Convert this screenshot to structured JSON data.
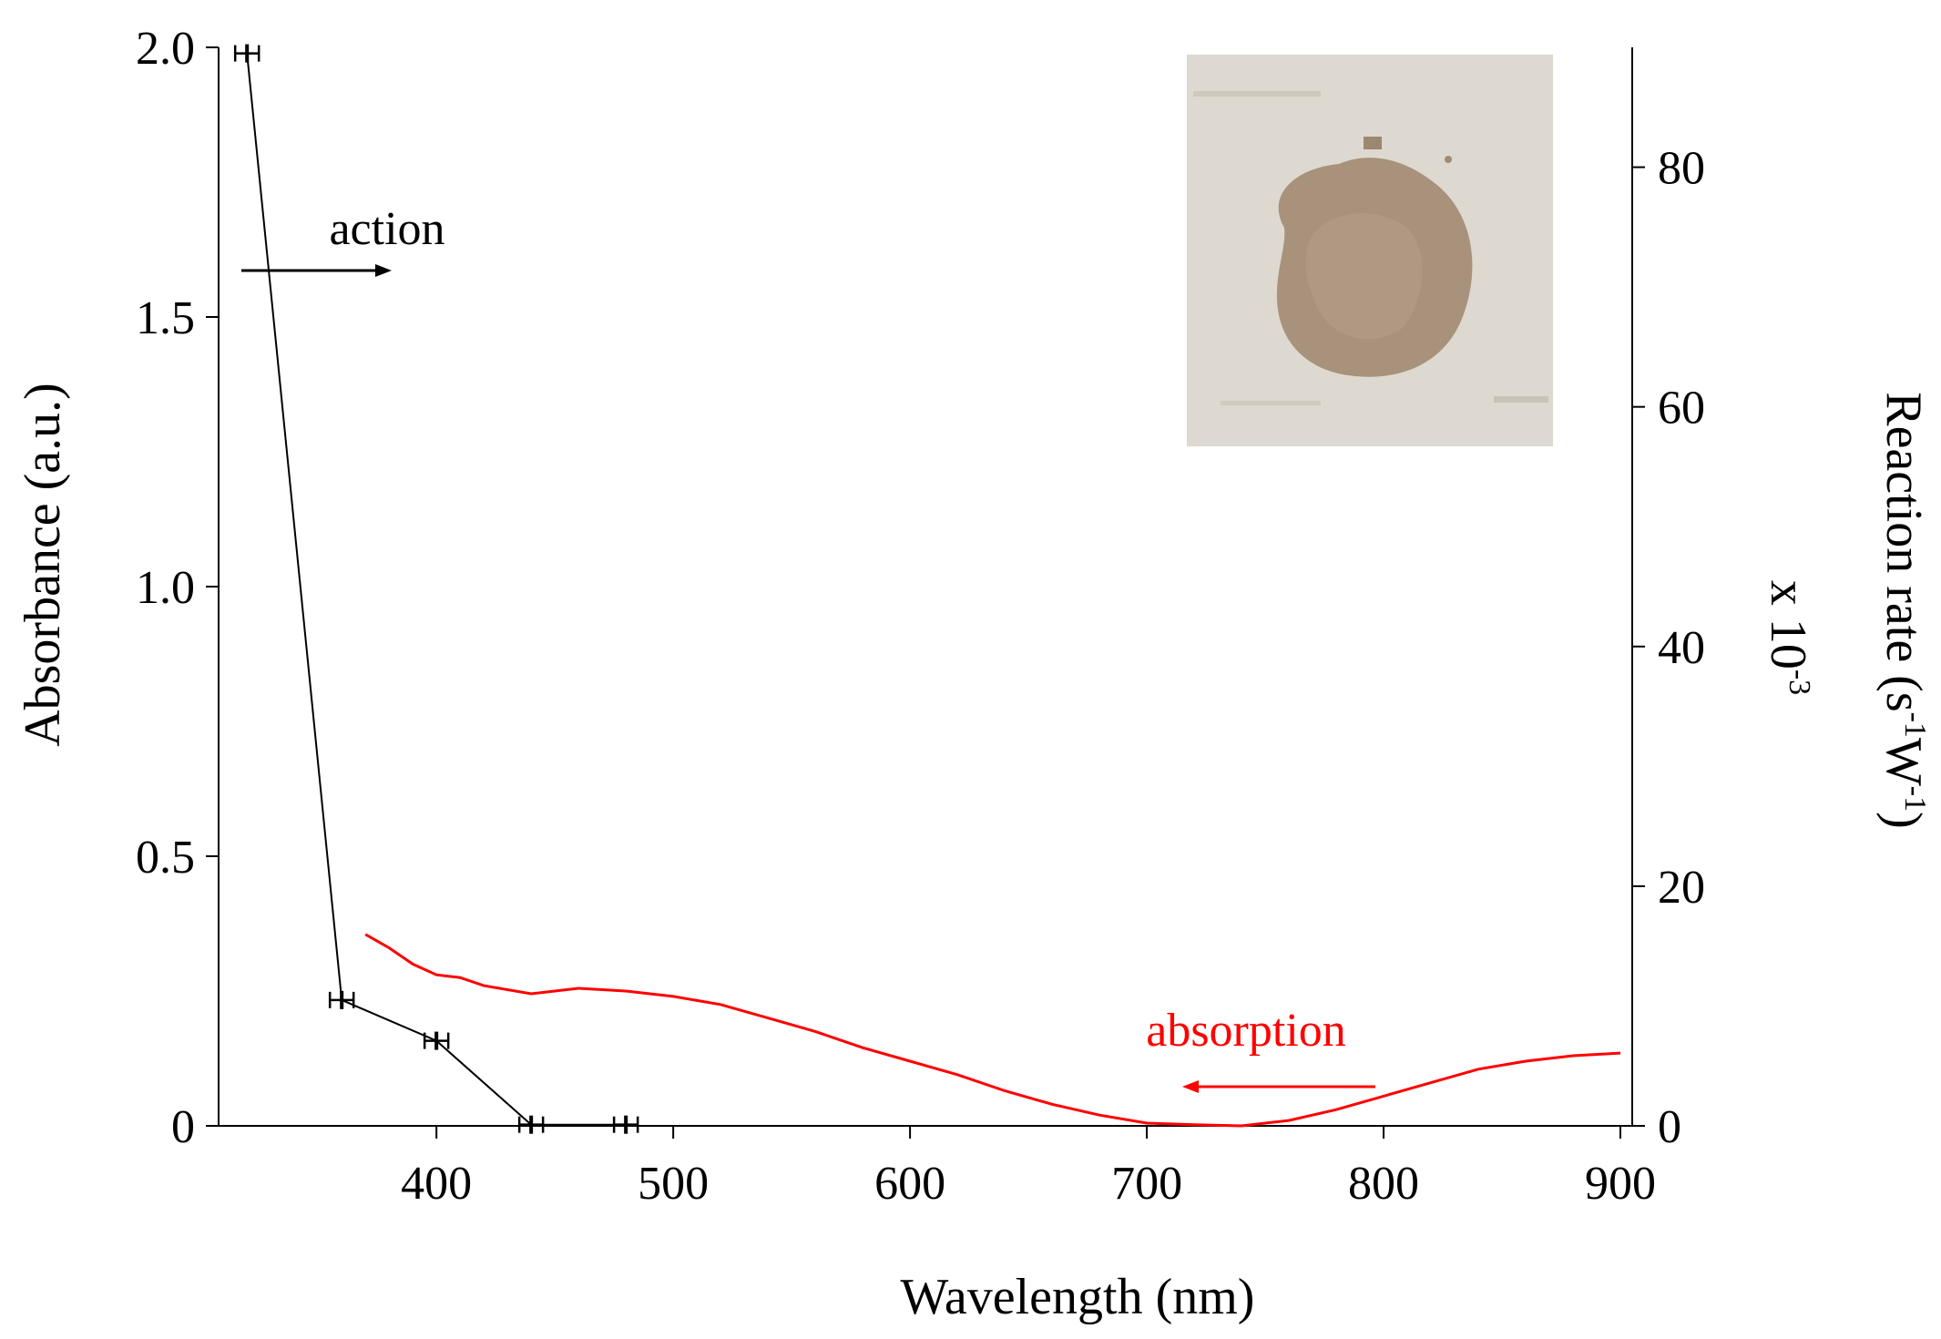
{
  "chart_data": {
    "type": "line",
    "xlabel": "Wavelength (nm)",
    "ylabel_left": "Absorbance (a.u.)",
    "ylabel_right_main": "Reaction rate (s",
    "ylabel_right_sup1": "-1",
    "ylabel_right_mid": "W",
    "ylabel_right_sup2": "-1",
    "ylabel_right_end": ")",
    "ylabel_right_scale": "x 10",
    "ylabel_right_scale_sup": "-3",
    "xlim": [
      308,
      905
    ],
    "ylim_left": [
      0,
      2.0
    ],
    "ylim_right": [
      0,
      90
    ],
    "x_ticks": [
      400,
      500,
      600,
      700,
      800,
      900
    ],
    "x_tick_labels": [
      "400",
      "500",
      "600",
      "700",
      "800",
      "900"
    ],
    "y_left_ticks": [
      0,
      0.5,
      1.0,
      1.5,
      2.0
    ],
    "y_left_tick_labels": [
      "0",
      "0.5",
      "1.0",
      "1.5",
      "2.0"
    ],
    "y_right_ticks": [
      0,
      20,
      40,
      60,
      80
    ],
    "y_right_tick_labels": [
      "0",
      "20",
      "40",
      "60",
      "80"
    ],
    "series": [
      {
        "name": "action",
        "axis": "right",
        "color": "#000000",
        "x": [
          320,
          360,
          400,
          440,
          480
        ],
        "y": [
          89.5,
          10.5,
          7.1,
          0.1,
          0.1
        ],
        "x_error": [
          5,
          5,
          5,
          5,
          5
        ]
      },
      {
        "name": "absorption",
        "axis": "left",
        "color": "#ff0000",
        "x": [
          370,
          380,
          390,
          400,
          410,
          420,
          440,
          460,
          480,
          500,
          520,
          540,
          560,
          580,
          600,
          620,
          640,
          660,
          680,
          700,
          720,
          740,
          760,
          780,
          800,
          820,
          840,
          860,
          880,
          900
        ],
        "y": [
          0.355,
          0.33,
          0.3,
          0.28,
          0.275,
          0.26,
          0.245,
          0.255,
          0.25,
          0.24,
          0.225,
          0.2,
          0.175,
          0.145,
          0.12,
          0.095,
          0.065,
          0.04,
          0.02,
          0.005,
          0.002,
          0.0,
          0.01,
          0.03,
          0.055,
          0.08,
          0.105,
          0.12,
          0.13,
          0.135
        ]
      }
    ],
    "annotations": [
      {
        "text": "action",
        "color": "#000000",
        "arrow": "right"
      },
      {
        "text": "absorption",
        "color": "#ff0000",
        "arrow": "left"
      }
    ],
    "inset": {
      "kind": "photo",
      "subject": "brown powder sample on white paper",
      "colors": {
        "paper": "#ddd9d0",
        "powder": "#a8927b"
      }
    }
  }
}
